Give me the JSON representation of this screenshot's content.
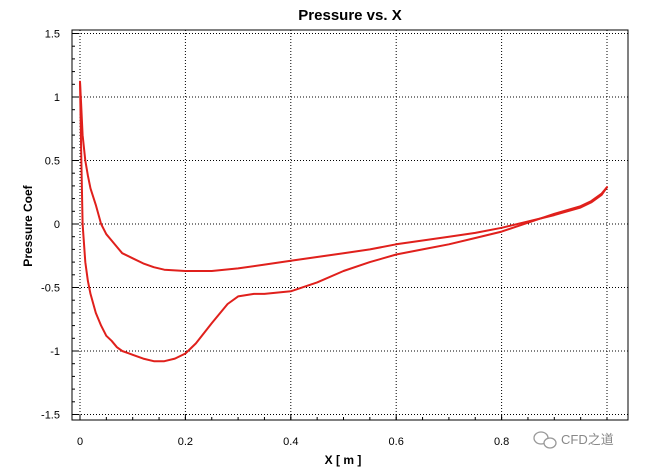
{
  "chart_data": {
    "type": "line",
    "title": "Pressure vs. X",
    "xlabel": "X [ m ]",
    "ylabel": "Pressure Coef",
    "xlim": [
      0,
      1
    ],
    "ylim": [
      -1.5,
      1.5
    ],
    "xticks": [
      "0",
      "0.2",
      "0.4",
      "0.6",
      "0.8"
    ],
    "yticks": [
      "1.5",
      "1",
      "0.5",
      "0",
      "-0.5",
      "-1",
      "-1.5"
    ],
    "grid": true,
    "legend": "none",
    "colors": {
      "series": "#e0201c",
      "grid": "#000000",
      "axis": "#000000"
    },
    "series": [
      {
        "x": [
          0.0,
          0.002,
          0.005,
          0.01,
          0.015,
          0.02,
          0.03,
          0.04,
          0.05,
          0.06,
          0.07,
          0.08,
          0.1,
          0.12,
          0.14,
          0.16,
          0.2,
          0.25,
          0.3,
          0.35,
          0.4,
          0.45,
          0.5,
          0.55,
          0.6,
          0.65,
          0.7,
          0.75,
          0.8,
          0.85,
          0.9,
          0.95,
          0.97,
          0.99,
          1.0
        ],
        "y": [
          1.12,
          0.95,
          0.7,
          0.5,
          0.38,
          0.28,
          0.15,
          0.0,
          -0.08,
          -0.13,
          -0.18,
          -0.23,
          -0.27,
          -0.31,
          -0.34,
          -0.36,
          -0.37,
          -0.37,
          -0.35,
          -0.32,
          -0.29,
          -0.26,
          -0.23,
          -0.2,
          -0.16,
          -0.13,
          -0.1,
          -0.07,
          -0.03,
          0.02,
          0.07,
          0.13,
          0.17,
          0.23,
          0.29
        ]
      },
      {
        "x": [
          0.0,
          0.002,
          0.005,
          0.01,
          0.015,
          0.02,
          0.03,
          0.04,
          0.05,
          0.06,
          0.07,
          0.08,
          0.1,
          0.12,
          0.14,
          0.16,
          0.18,
          0.2,
          0.22,
          0.25,
          0.28,
          0.3,
          0.33,
          0.35,
          0.4,
          0.45,
          0.5,
          0.55,
          0.6,
          0.65,
          0.7,
          0.75,
          0.8,
          0.85,
          0.9,
          0.95,
          0.97,
          0.99,
          1.0
        ],
        "y": [
          1.12,
          0.6,
          0.0,
          -0.3,
          -0.45,
          -0.55,
          -0.7,
          -0.8,
          -0.88,
          -0.92,
          -0.97,
          -1.0,
          -1.03,
          -1.06,
          -1.08,
          -1.08,
          -1.06,
          -1.02,
          -0.94,
          -0.78,
          -0.63,
          -0.57,
          -0.55,
          -0.55,
          -0.53,
          -0.46,
          -0.37,
          -0.3,
          -0.24,
          -0.2,
          -0.16,
          -0.11,
          -0.06,
          0.01,
          0.08,
          0.14,
          0.18,
          0.24,
          0.29
        ]
      }
    ]
  },
  "watermark": {
    "text": "CFD之道",
    "icon": "wechat-icon"
  }
}
